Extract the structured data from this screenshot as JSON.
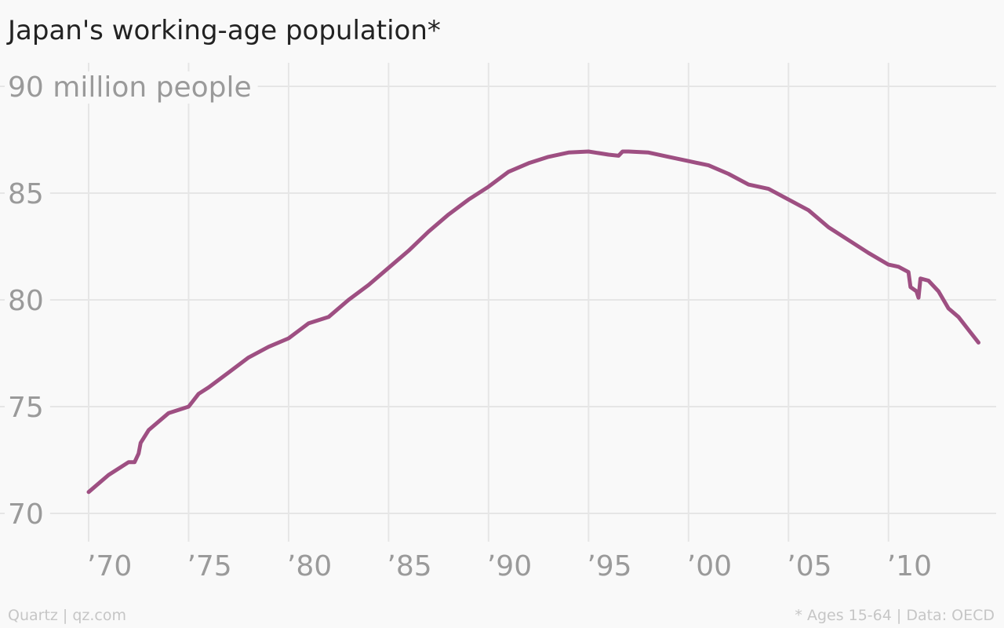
{
  "chart_data": {
    "type": "line",
    "title": "Japan's working-age population*",
    "source": "Quartz | qz.com",
    "note": "* Ages 15-64 | Data: OECD",
    "xlim": [
      1970,
      2014.6
    ],
    "ylim": [
      70,
      90
    ],
    "xticks": [
      {
        "value": 1970,
        "label": "’70"
      },
      {
        "value": 1975,
        "label": "’75"
      },
      {
        "value": 1980,
        "label": "’80"
      },
      {
        "value": 1985,
        "label": "’85"
      },
      {
        "value": 1990,
        "label": "’90"
      },
      {
        "value": 1995,
        "label": "’95"
      },
      {
        "value": 2000,
        "label": "’00"
      },
      {
        "value": 2005,
        "label": "’05"
      },
      {
        "value": 2010,
        "label": "’10"
      }
    ],
    "yticks": [
      70,
      75,
      80,
      85,
      {
        "value": 90,
        "label": "90 million people"
      }
    ],
    "grid": true,
    "x": [
      1970,
      1971,
      1972,
      1972.3,
      1972.5,
      1972.6,
      1973,
      1974,
      1975,
      1975.5,
      1976,
      1977,
      1978,
      1979,
      1980,
      1981,
      1982,
      1983,
      1984,
      1985,
      1986,
      1987,
      1988,
      1989,
      1990,
      1991,
      1992,
      1993,
      1994,
      1995,
      1996,
      1996.5,
      1996.7,
      1997,
      1998,
      1999,
      2000,
      2001,
      2002,
      2003,
      2004,
      2005,
      2006,
      2007,
      2008,
      2009,
      2010,
      2010.5,
      2011,
      2011.1,
      2011.4,
      2011.5,
      2011.6,
      2012,
      2012.5,
      2013,
      2013.5,
      2014,
      2014.5
    ],
    "series": [
      {
        "name": "Working-age population",
        "color": "#9e4f82",
        "values": [
          71.0,
          71.8,
          72.4,
          72.4,
          72.8,
          73.3,
          73.9,
          74.7,
          75.0,
          75.6,
          75.9,
          76.6,
          77.3,
          77.8,
          78.2,
          78.9,
          79.2,
          80.0,
          80.7,
          81.5,
          82.3,
          83.2,
          84.0,
          84.7,
          85.3,
          86.0,
          86.4,
          86.7,
          86.9,
          86.95,
          86.8,
          86.75,
          86.95,
          86.95,
          86.9,
          86.7,
          86.5,
          86.3,
          85.9,
          85.4,
          85.2,
          84.7,
          84.2,
          83.4,
          82.8,
          82.2,
          81.65,
          81.55,
          81.3,
          80.6,
          80.4,
          80.1,
          81.0,
          80.9,
          80.4,
          79.6,
          79.2,
          78.6,
          78.0
        ]
      }
    ]
  }
}
